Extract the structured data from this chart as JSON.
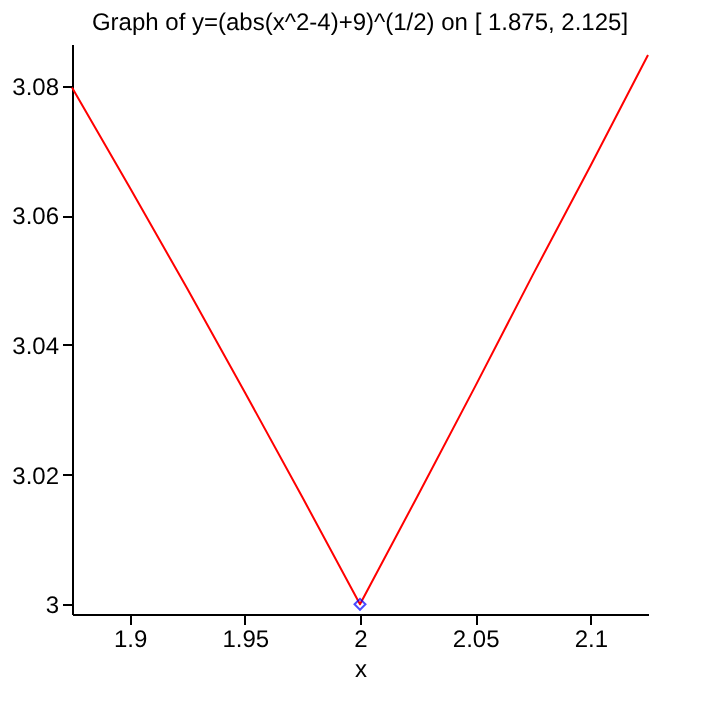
{
  "chart_data": {
    "type": "line",
    "title": "Graph of y=(abs(x^2-4)+9)^(1/2) on [ 1.875, 2.125]",
    "xlabel": "x",
    "xlim": [
      1.875,
      2.125
    ],
    "xticks": [
      1.9,
      1.95,
      2,
      2.05,
      2.1
    ],
    "ylim": [
      2.9985,
      3.0864
    ],
    "yticks": [
      3,
      3.02,
      3.04,
      3.06,
      3.08
    ],
    "grid": false,
    "legend": false,
    "series": [
      {
        "color": "#ff0000",
        "marker": "none",
        "x": [
          1.875,
          1.9,
          1.925,
          1.95,
          1.975,
          2,
          2.025,
          2.05,
          2.075,
          2.1,
          2.125
        ],
        "values": [
          3.0797,
          3.0643,
          3.0487,
          3.0327,
          3.0165,
          3.0,
          3.0167,
          3.0336,
          3.0508,
          3.0676,
          3.0847
        ]
      },
      {
        "type": "scatter",
        "color": "#0000ff",
        "marker": "diamond",
        "x": [
          2
        ],
        "values": [
          3.0
        ]
      }
    ]
  }
}
